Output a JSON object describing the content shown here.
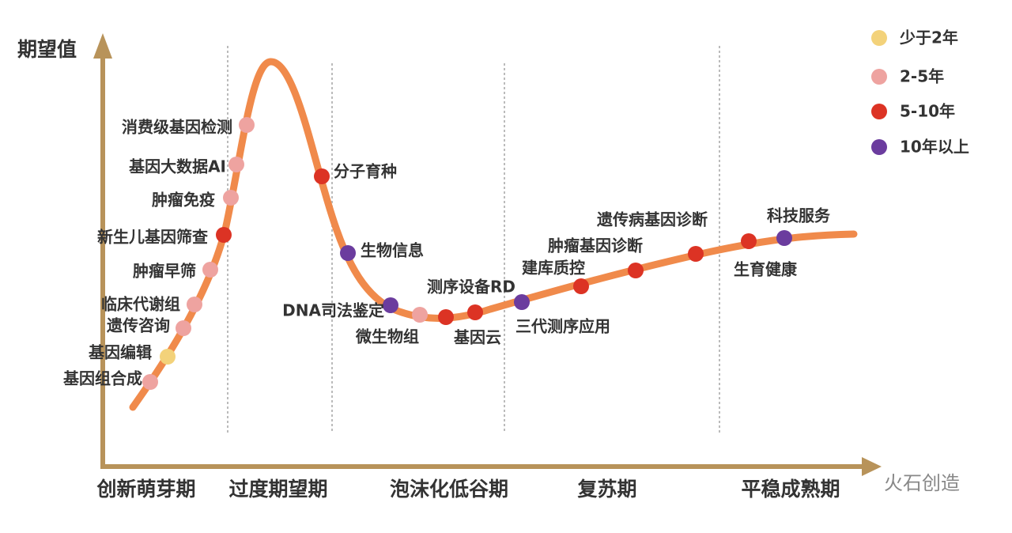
{
  "y_axis_label": "期望值",
  "phases": [
    "创新萌芽期",
    "过度期望期",
    "泡沫化低谷期",
    "复苏期",
    "平稳成熟期"
  ],
  "legend": [
    {
      "label": "少于2年",
      "color": "#f3d27a"
    },
    {
      "label": "2-5年",
      "color": "#eea3a0"
    },
    {
      "label": "5-10年",
      "color": "#dc3324"
    },
    {
      "label": "10年以上",
      "color": "#6b3c9e"
    }
  ],
  "nodes": [
    {
      "label": "基因组合成",
      "group": "2-5年"
    },
    {
      "label": "基因编辑",
      "group": "少于2年"
    },
    {
      "label": "遗传咨询",
      "group": "2-5年"
    },
    {
      "label": "临床代谢组",
      "group": "2-5年"
    },
    {
      "label": "肿瘤早筛",
      "group": "2-5年"
    },
    {
      "label": "新生儿基因筛查",
      "group": "5-10年"
    },
    {
      "label": "肿瘤免疫",
      "group": "2-5年"
    },
    {
      "label": "基因大数据AI",
      "group": "2-5年"
    },
    {
      "label": "消费级基因检测",
      "group": "2-5年"
    },
    {
      "label": "分子育种",
      "group": "5-10年"
    },
    {
      "label": "生物信息",
      "group": "10年以上"
    },
    {
      "label": "DNA司法鉴定",
      "group": "10年以上"
    },
    {
      "label": "微生物组",
      "group": "2-5年"
    },
    {
      "label": "基因云",
      "group": "5-10年"
    },
    {
      "label": "测序设备RD",
      "group": "5-10年"
    },
    {
      "label": "三代测序应用",
      "group": "10年以上"
    },
    {
      "label": "建库质控",
      "group": "5-10年"
    },
    {
      "label": "肿瘤基因诊断",
      "group": "5-10年"
    },
    {
      "label": "遗传病基因诊断",
      "group": "5-10年"
    },
    {
      "label": "生育健康",
      "group": "5-10年"
    },
    {
      "label": "科技服务",
      "group": "10年以上"
    }
  ],
  "watermark": "火石创造"
}
